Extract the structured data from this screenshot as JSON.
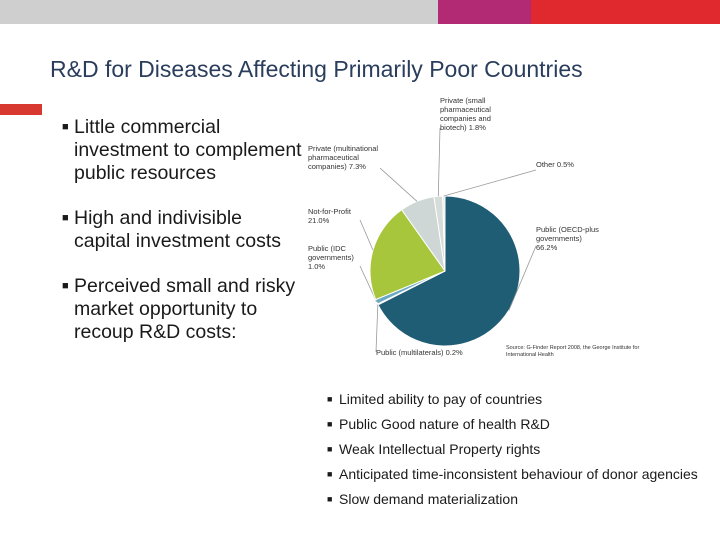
{
  "colors": {
    "topbar": [
      "#cfcfcf",
      "#b22a73",
      "#e0282f"
    ],
    "title": "#2a3d5c",
    "accent": "#d7382f",
    "slices": [
      "#1f5d75",
      "#6ba8c5",
      "#a8c63b",
      "#cfd6d6",
      "#d6dcd8"
    ],
    "leader": "#999999"
  },
  "title": "R&D for Diseases Affecting Primarily Poor Countries",
  "left_bullets": [
    "Little commercial investment to complement public resources",
    "High and indivisible capital investment costs",
    "Perceived small and risky market opportunity to recoup R&D costs:"
  ],
  "chart_data": {
    "type": "pie",
    "title": "",
    "slices": [
      {
        "label": "Public (OECD-plus governments) 66.2%",
        "value": 66.2
      },
      {
        "label": "Public (multilaterals) 0.2%",
        "value": 0.2
      },
      {
        "label": "Public (IDC governments) 1.0%",
        "value": 1.0
      },
      {
        "label": "Not-for-Profit 21.0%",
        "value": 21.0
      },
      {
        "label": "Private (multinational pharmaceutical companies) 7.3%",
        "value": 7.3
      },
      {
        "label": "Private (small pharmaceutical companies and biotech) 1.8%",
        "value": 1.8
      },
      {
        "label": "Other 0.5%",
        "value": 0.5
      }
    ],
    "label_lines": [
      [
        "Public (OECD-plus",
        "governments)",
        "66.2%"
      ],
      [
        "Public (multilaterals) 0.2%"
      ],
      [
        "Public (IDC",
        "governments)",
        "1.0%"
      ],
      [
        "Not-for-Profit",
        "21.0%"
      ],
      [
        "Private (multinational",
        "pharmaceutical",
        "companies) 7.3%"
      ],
      [
        "Private (small",
        "pharmaceutical",
        "companies and",
        "biotech) 1.8%"
      ],
      [
        "Other 0.5%"
      ]
    ],
    "source": [
      "Source: G-Finder Report 2008, the George Institute for",
      "International Health"
    ]
  },
  "right_bullets": [
    "Limited ability to pay of countries",
    "Public Good nature of health R&D",
    "Weak Intellectual Property rights",
    "Anticipated time-inconsistent behaviour of donor agencies",
    "Slow demand materialization"
  ]
}
